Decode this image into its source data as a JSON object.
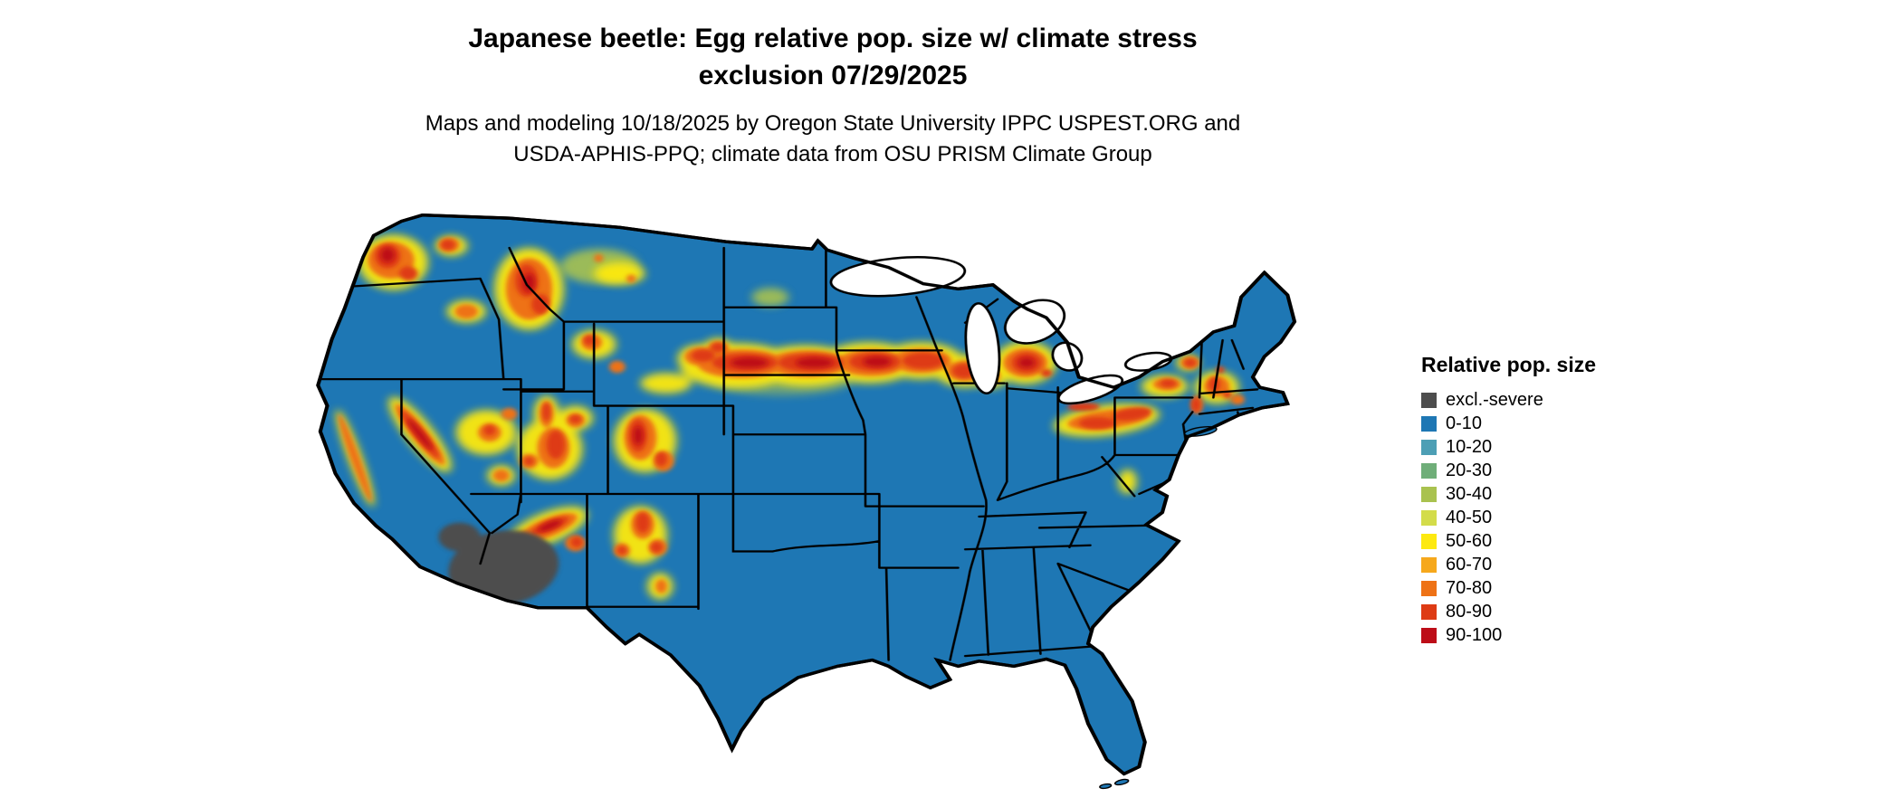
{
  "title": {
    "line1": "Japanese beetle: Egg relative pop. size w/ climate stress",
    "line2": "exclusion 07/29/2025"
  },
  "subtitle": {
    "line1": "Maps and modeling 10/18/2025 by Oregon State University IPPC USPEST.ORG and",
    "line2": "USDA-APHIS-PPQ; climate data from OSU PRISM Climate Group"
  },
  "legend": {
    "title": "Relative pop. size",
    "items": [
      {
        "key": "excl",
        "label": "excl.-severe",
        "color": "#4d4d4d"
      },
      {
        "key": "b0",
        "label": "0-10",
        "color": "#1e77b4"
      },
      {
        "key": "b10",
        "label": "10-20",
        "color": "#4d9fb5"
      },
      {
        "key": "b20",
        "label": "20-30",
        "color": "#6fae79"
      },
      {
        "key": "b30",
        "label": "30-40",
        "color": "#a9c24f"
      },
      {
        "key": "b40",
        "label": "40-50",
        "color": "#d3dc4a"
      },
      {
        "key": "b50",
        "label": "50-60",
        "color": "#fde910"
      },
      {
        "key": "b60",
        "label": "60-70",
        "color": "#f6a81c"
      },
      {
        "key": "b70",
        "label": "70-80",
        "color": "#ee7216"
      },
      {
        "key": "b80",
        "label": "80-90",
        "color": "#de3b14"
      },
      {
        "key": "b90",
        "label": "90-100",
        "color": "#bd0d18"
      }
    ]
  },
  "map": {
    "background": "#ffffff",
    "border_color": "#000000",
    "water_color": "#ffffff"
  }
}
